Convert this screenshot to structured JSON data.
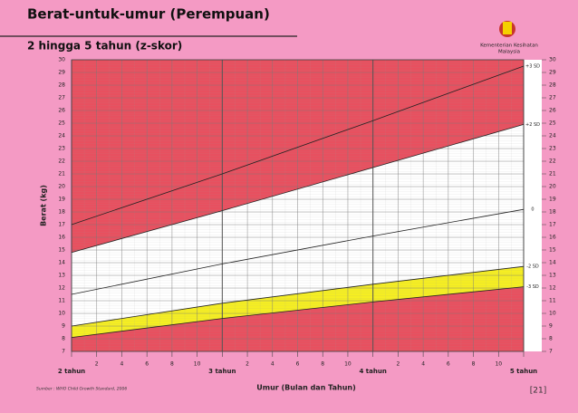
{
  "chart_data": {
    "type": "line",
    "title": "Berat-untuk-umur (Perempuan)",
    "subtitle": "2 hingga 5 tahun (z-skor)",
    "logo_text": [
      "Kementerian Kesihatan",
      "Malaysia"
    ],
    "y_label": "Berat (kg)",
    "x_label": "Umur (Bulan dan Tahun)",
    "source": "Sumber : WHO Child Growth Standard, 2006",
    "page_number": "[21]",
    "x": [
      24,
      36,
      48,
      60
    ],
    "series": [
      {
        "name": "+3 SD",
        "color": "#222222",
        "values": [
          17.0,
          21.0,
          25.2,
          29.5
        ]
      },
      {
        "name": "+2 SD",
        "color": "#222222",
        "values": [
          14.8,
          18.1,
          21.5,
          24.9
        ]
      },
      {
        "name": "0",
        "color": "#222222",
        "values": [
          11.5,
          13.9,
          16.1,
          18.2
        ]
      },
      {
        "name": "-2 SD",
        "color": "#222222",
        "values": [
          9.0,
          10.8,
          12.3,
          13.7
        ]
      },
      {
        "name": "-3 SD",
        "color": "#222222",
        "values": [
          8.1,
          9.6,
          10.9,
          12.1
        ]
      }
    ],
    "band_colors": {
      "outer": "#e8505f",
      "normal": "#ffffff",
      "low": "#f5ee22"
    },
    "xlim": [
      24,
      60
    ],
    "xticks": [
      {
        "value": 24,
        "label": "2 tahun"
      },
      {
        "value": 26,
        "label": "2"
      },
      {
        "value": 28,
        "label": "4"
      },
      {
        "value": 30,
        "label": "6"
      },
      {
        "value": 32,
        "label": "8"
      },
      {
        "value": 34,
        "label": "10"
      },
      {
        "value": 36,
        "label": "3 tahun"
      },
      {
        "value": 38,
        "label": "2"
      },
      {
        "value": 40,
        "label": "4"
      },
      {
        "value": 42,
        "label": "6"
      },
      {
        "value": 44,
        "label": "8"
      },
      {
        "value": 46,
        "label": "10"
      },
      {
        "value": 48,
        "label": "4 tahun"
      },
      {
        "value": 50,
        "label": "2"
      },
      {
        "value": 52,
        "label": "4"
      },
      {
        "value": 54,
        "label": "6"
      },
      {
        "value": 56,
        "label": "8"
      },
      {
        "value": 58,
        "label": "10"
      },
      {
        "value": 60,
        "label": "5 tahun"
      }
    ],
    "ylim": [
      7,
      30
    ],
    "yticks": [
      7,
      8,
      9,
      10,
      11,
      12,
      13,
      14,
      15,
      16,
      17,
      18,
      19,
      20,
      21,
      22,
      23,
      24,
      25,
      26,
      27,
      28,
      29,
      30
    ],
    "grid": true
  }
}
